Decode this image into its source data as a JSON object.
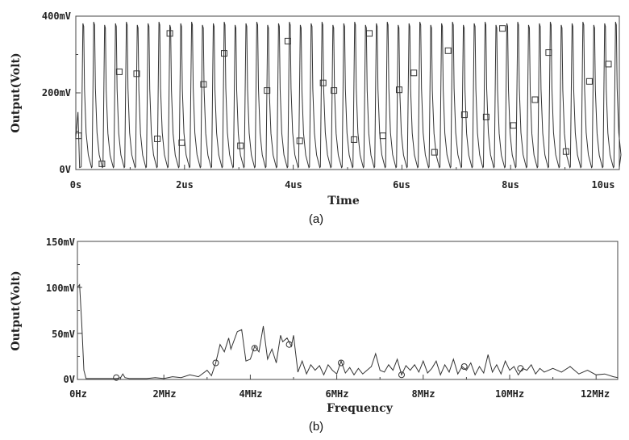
{
  "chart_data": [
    {
      "id": "a",
      "type": "line",
      "caption": "(a)",
      "xlabel": "Time",
      "ylabel": "Output(Volt)",
      "x_unit": "us",
      "xlim": [
        0,
        10
      ],
      "ylim": [
        0,
        400
      ],
      "xticks": [
        {
          "value": 0,
          "label": "0s"
        },
        {
          "value": 2,
          "label": "2us"
        },
        {
          "value": 4,
          "label": "4us"
        },
        {
          "value": 6,
          "label": "6us"
        },
        {
          "value": 8,
          "label": "8us"
        },
        {
          "value": 10,
          "label": "10us"
        }
      ],
      "yticks": [
        {
          "value": 0,
          "label": "0V"
        },
        {
          "value": 200,
          "label": "200mV"
        },
        {
          "value": 400,
          "label": "400mV"
        }
      ],
      "pulse_period": 0.2,
      "pulse_start": 0.1,
      "pulse_peak": 385,
      "pulse_baseline": 5,
      "series": [
        {
          "markers": [
            {
              "x": 0.05,
              "y": 88
            },
            {
              "x": 0.48,
              "y": 15
            },
            {
              "x": 0.8,
              "y": 255
            },
            {
              "x": 1.12,
              "y": 250
            },
            {
              "x": 1.5,
              "y": 80
            },
            {
              "x": 1.73,
              "y": 355
            },
            {
              "x": 1.95,
              "y": 70
            },
            {
              "x": 2.35,
              "y": 222
            },
            {
              "x": 2.73,
              "y": 303
            },
            {
              "x": 3.03,
              "y": 62
            },
            {
              "x": 3.52,
              "y": 206
            },
            {
              "x": 3.9,
              "y": 335
            },
            {
              "x": 4.12,
              "y": 75
            },
            {
              "x": 4.55,
              "y": 226
            },
            {
              "x": 4.75,
              "y": 206
            },
            {
              "x": 5.12,
              "y": 78
            },
            {
              "x": 5.4,
              "y": 355
            },
            {
              "x": 5.95,
              "y": 208
            },
            {
              "x": 6.22,
              "y": 252
            },
            {
              "x": 5.65,
              "y": 88
            },
            {
              "x": 6.6,
              "y": 45
            },
            {
              "x": 6.85,
              "y": 310
            },
            {
              "x": 7.15,
              "y": 143
            },
            {
              "x": 7.55,
              "y": 137
            },
            {
              "x": 7.85,
              "y": 368
            },
            {
              "x": 8.05,
              "y": 115
            },
            {
              "x": 8.45,
              "y": 182
            },
            {
              "x": 8.7,
              "y": 305
            },
            {
              "x": 9.02,
              "y": 47
            },
            {
              "x": 9.45,
              "y": 230
            },
            {
              "x": 9.8,
              "y": 275
            }
          ]
        }
      ]
    },
    {
      "id": "b",
      "type": "line",
      "caption": "(b)",
      "xlabel": "Frequency",
      "ylabel": "Output(Volt)",
      "x_unit": "MHz",
      "xlim": [
        0,
        12.5
      ],
      "ylim": [
        0,
        150
      ],
      "xticks": [
        {
          "value": 0,
          "label": "0Hz"
        },
        {
          "value": 2,
          "label": "2MHz"
        },
        {
          "value": 4,
          "label": "4MHz"
        },
        {
          "value": 6,
          "label": "6MHz"
        },
        {
          "value": 8,
          "label": "8MHz"
        },
        {
          "value": 10,
          "label": "10MHz"
        },
        {
          "value": 12,
          "label": "12MHz"
        }
      ],
      "yticks": [
        {
          "value": 0,
          "label": "0V"
        },
        {
          "value": 50,
          "label": "50mV"
        },
        {
          "value": 100,
          "label": "100mV"
        },
        {
          "value": 150,
          "label": "150mV"
        }
      ],
      "series": [
        {
          "points": [
            [
              0.0,
              100
            ],
            [
              0.05,
              103
            ],
            [
              0.1,
              60
            ],
            [
              0.15,
              10
            ],
            [
              0.2,
              1
            ],
            [
              0.3,
              1
            ],
            [
              0.5,
              1
            ],
            [
              0.7,
              1
            ],
            [
              0.9,
              1
            ],
            [
              1.0,
              2
            ],
            [
              1.05,
              6
            ],
            [
              1.1,
              2
            ],
            [
              1.2,
              1
            ],
            [
              1.4,
              1
            ],
            [
              1.6,
              1
            ],
            [
              1.8,
              2
            ],
            [
              2.0,
              1
            ],
            [
              2.2,
              3
            ],
            [
              2.4,
              2
            ],
            [
              2.6,
              5
            ],
            [
              2.8,
              3
            ],
            [
              3.0,
              10
            ],
            [
              3.1,
              4
            ],
            [
              3.2,
              18
            ],
            [
              3.3,
              38
            ],
            [
              3.4,
              30
            ],
            [
              3.5,
              45
            ],
            [
              3.55,
              33
            ],
            [
              3.7,
              52
            ],
            [
              3.8,
              54
            ],
            [
              3.9,
              20
            ],
            [
              4.0,
              22
            ],
            [
              4.1,
              36
            ],
            [
              4.2,
              30
            ],
            [
              4.3,
              58
            ],
            [
              4.4,
              22
            ],
            [
              4.5,
              33
            ],
            [
              4.6,
              18
            ],
            [
              4.7,
              48
            ],
            [
              4.75,
              41
            ],
            [
              4.85,
              45
            ],
            [
              4.95,
              36
            ],
            [
              5.0,
              48
            ],
            [
              5.1,
              8
            ],
            [
              5.2,
              20
            ],
            [
              5.3,
              6
            ],
            [
              5.4,
              16
            ],
            [
              5.5,
              10
            ],
            [
              5.6,
              15
            ],
            [
              5.7,
              5
            ],
            [
              5.8,
              16
            ],
            [
              5.9,
              10
            ],
            [
              6.0,
              6
            ],
            [
              6.1,
              20
            ],
            [
              6.2,
              7
            ],
            [
              6.3,
              13
            ],
            [
              6.4,
              5
            ],
            [
              6.5,
              12
            ],
            [
              6.6,
              6
            ],
            [
              6.7,
              10
            ],
            [
              6.8,
              14
            ],
            [
              6.9,
              28
            ],
            [
              7.0,
              10
            ],
            [
              7.1,
              8
            ],
            [
              7.2,
              16
            ],
            [
              7.3,
              10
            ],
            [
              7.4,
              22
            ],
            [
              7.5,
              5
            ],
            [
              7.6,
              15
            ],
            [
              7.7,
              10
            ],
            [
              7.8,
              16
            ],
            [
              7.9,
              8
            ],
            [
              8.0,
              20
            ],
            [
              8.1,
              7
            ],
            [
              8.2,
              12
            ],
            [
              8.3,
              20
            ],
            [
              8.4,
              5
            ],
            [
              8.5,
              16
            ],
            [
              8.6,
              8
            ],
            [
              8.7,
              22
            ],
            [
              8.8,
              6
            ],
            [
              8.9,
              14
            ],
            [
              9.0,
              10
            ],
            [
              9.1,
              18
            ],
            [
              9.2,
              5
            ],
            [
              9.3,
              14
            ],
            [
              9.4,
              7
            ],
            [
              9.5,
              27
            ],
            [
              9.6,
              8
            ],
            [
              9.7,
              16
            ],
            [
              9.8,
              6
            ],
            [
              9.9,
              20
            ],
            [
              10.0,
              10
            ],
            [
              10.1,
              14
            ],
            [
              10.2,
              5
            ],
            [
              10.3,
              12
            ],
            [
              10.4,
              10
            ],
            [
              10.5,
              16
            ],
            [
              10.6,
              6
            ],
            [
              10.7,
              12
            ],
            [
              10.8,
              8
            ],
            [
              11.0,
              12
            ],
            [
              11.2,
              8
            ],
            [
              11.4,
              14
            ],
            [
              11.6,
              6
            ],
            [
              11.8,
              10
            ],
            [
              12.0,
              5
            ],
            [
              12.2,
              6
            ],
            [
              12.4,
              3
            ],
            [
              12.5,
              2
            ]
          ],
          "markers": [
            {
              "x": 0.9,
              "y": 2
            },
            {
              "x": 3.2,
              "y": 18
            },
            {
              "x": 4.1,
              "y": 34
            },
            {
              "x": 4.9,
              "y": 38
            },
            {
              "x": 6.1,
              "y": 18
            },
            {
              "x": 7.5,
              "y": 5
            },
            {
              "x": 8.95,
              "y": 14
            },
            {
              "x": 10.25,
              "y": 12
            }
          ]
        }
      ]
    }
  ]
}
